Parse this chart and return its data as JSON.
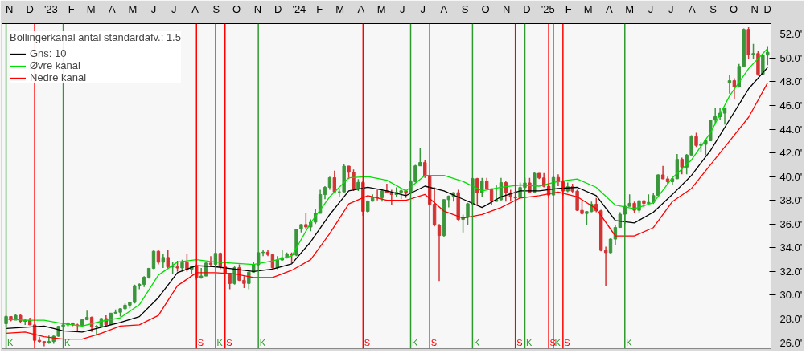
{
  "chart_data": {
    "type": "candlestick",
    "legend_title": "Bollingerkanal antal standardafv.: 1.5",
    "x": [
      "2022-11-11",
      "2022-11-18",
      "2022-11-25",
      "2022-12-02",
      "2022-12-09",
      "2022-12-16",
      "2022-12-23",
      "2022-12-30",
      "2023-01-06",
      "2023-01-13",
      "2023-01-20",
      "2023-01-27",
      "2023-02-03",
      "2023-02-10",
      "2023-02-17",
      "2023-02-24",
      "2023-03-03",
      "2023-03-10",
      "2023-03-17",
      "2023-03-24",
      "2023-03-31",
      "2023-04-07",
      "2023-04-14",
      "2023-04-21",
      "2023-04-28",
      "2023-05-05",
      "2023-05-12",
      "2023-05-19",
      "2023-05-26",
      "2023-06-02",
      "2023-06-09",
      "2023-06-16",
      "2023-06-23",
      "2023-06-30",
      "2023-07-07",
      "2023-07-14",
      "2023-07-21",
      "2023-07-28",
      "2023-08-04",
      "2023-08-11",
      "2023-08-18",
      "2023-08-25",
      "2023-09-01",
      "2023-09-08",
      "2023-09-15",
      "2023-09-22",
      "2023-09-29",
      "2023-10-06",
      "2023-10-13",
      "2023-10-20",
      "2023-10-27",
      "2023-11-03",
      "2023-11-10",
      "2023-11-17",
      "2023-11-24",
      "2023-12-01",
      "2023-12-08",
      "2023-12-15",
      "2023-12-22",
      "2023-12-29",
      "2024-01-05",
      "2024-01-12",
      "2024-01-19",
      "2024-01-26",
      "2024-02-02",
      "2024-02-09",
      "2024-02-16",
      "2024-02-23",
      "2024-03-01",
      "2024-03-08",
      "2024-03-15",
      "2024-03-22",
      "2024-03-29",
      "2024-04-05",
      "2024-04-12",
      "2024-04-19",
      "2024-04-26",
      "2024-05-03",
      "2024-05-10",
      "2024-05-17",
      "2024-05-24",
      "2024-05-31",
      "2024-06-07",
      "2024-06-14",
      "2024-06-21",
      "2024-06-28",
      "2024-07-05",
      "2024-07-12",
      "2024-07-19",
      "2024-07-26",
      "2024-08-02",
      "2024-08-09",
      "2024-08-16",
      "2024-08-23",
      "2024-08-30",
      "2024-09-06",
      "2024-09-13",
      "2024-09-20",
      "2024-09-27",
      "2024-10-04",
      "2024-10-11",
      "2024-10-18",
      "2024-10-25",
      "2024-11-01",
      "2024-11-08",
      "2024-11-15",
      "2024-11-22",
      "2024-11-29",
      "2024-12-06",
      "2024-12-13",
      "2024-12-20",
      "2024-12-27",
      "2025-01-03",
      "2025-01-10",
      "2025-01-17",
      "2025-01-24",
      "2025-01-31",
      "2025-02-07",
      "2025-02-14",
      "2025-02-21",
      "2025-02-28",
      "2025-03-07",
      "2025-03-14",
      "2025-03-21",
      "2025-03-28",
      "2025-04-04",
      "2025-04-11",
      "2025-04-18",
      "2025-04-25",
      "2025-05-02",
      "2025-05-09",
      "2025-05-16",
      "2025-05-23",
      "2025-05-30",
      "2025-06-06",
      "2025-06-13",
      "2025-06-20",
      "2025-06-27",
      "2025-07-04",
      "2025-07-11",
      "2025-07-18",
      "2025-07-25",
      "2025-08-01",
      "2025-08-08",
      "2025-08-15",
      "2025-08-22",
      "2025-08-29",
      "2025-09-05",
      "2025-09-12",
      "2025-09-19",
      "2025-09-26",
      "2025-10-03",
      "2025-10-10",
      "2025-10-17",
      "2025-10-24",
      "2025-10-31",
      "2025-11-07",
      "2025-11-14",
      "2025-11-21",
      "2025-11-28",
      "2025-12-05"
    ],
    "ohlc": [
      [
        27.6,
        28.3,
        27.3,
        28.2
      ],
      [
        28.2,
        28.2,
        27.8,
        27.9
      ],
      [
        27.9,
        28.4,
        27.9,
        28.3
      ],
      [
        28.3,
        28.4,
        27.7,
        27.8
      ],
      [
        27.8,
        28.0,
        27.5,
        27.9
      ],
      [
        27.9,
        28.1,
        27.5,
        27.5
      ],
      [
        27.5,
        27.5,
        26.0,
        26.2
      ],
      [
        26.2,
        26.5,
        26.0,
        26.1
      ],
      [
        26.1,
        26.1,
        25.7,
        25.97
      ],
      [
        26.0,
        26.6,
        25.9,
        26.1
      ],
      [
        26.1,
        26.6,
        25.9,
        26.55
      ],
      [
        26.55,
        27.4,
        26.5,
        27.38
      ],
      [
        27.38,
        27.6,
        27.1,
        27.5
      ],
      [
        27.5,
        27.7,
        27.3,
        27.67
      ],
      [
        27.67,
        27.7,
        27.4,
        27.5
      ],
      [
        27.5,
        27.6,
        27.0,
        27.45
      ],
      [
        27.45,
        28.0,
        27.3,
        27.93
      ],
      [
        27.93,
        28.7,
        27.9,
        28.14
      ],
      [
        28.14,
        28.2,
        26.9,
        27.33
      ],
      [
        27.33,
        27.5,
        26.6,
        27.39
      ],
      [
        27.39,
        28.1,
        27.3,
        28.04
      ],
      [
        28.04,
        28.3,
        27.3,
        27.52
      ],
      [
        27.52,
        28.5,
        27.5,
        28.49
      ],
      [
        28.49,
        28.8,
        28.4,
        28.56
      ],
      [
        28.56,
        28.9,
        28.2,
        28.86
      ],
      [
        28.86,
        29.3,
        28.8,
        29.16
      ],
      [
        29.16,
        29.4,
        28.9,
        29.39
      ],
      [
        29.39,
        30.9,
        29.3,
        30.81
      ],
      [
        30.81,
        31.0,
        30.5,
        30.92
      ],
      [
        30.92,
        31.6,
        30.7,
        31.52
      ],
      [
        31.52,
        32.3,
        31.4,
        32.27
      ],
      [
        32.27,
        33.8,
        32.2,
        33.71
      ],
      [
        33.71,
        33.8,
        32.6,
        32.78
      ],
      [
        32.78,
        33.5,
        32.3,
        33.19
      ],
      [
        33.19,
        33.8,
        32.3,
        32.39
      ],
      [
        32.39,
        32.8,
        31.8,
        32.39
      ],
      [
        32.39,
        32.9,
        32.0,
        32.3
      ],
      [
        32.3,
        33.0,
        32.0,
        32.76
      ],
      [
        32.76,
        33.5,
        32.0,
        32.19
      ],
      [
        32.19,
        32.5,
        31.8,
        32.47
      ],
      [
        32.47,
        32.6,
        31.3,
        31.45
      ],
      [
        31.45,
        32.3,
        31.4,
        31.62
      ],
      [
        31.62,
        32.8,
        31.6,
        32.71
      ],
      [
        32.71,
        33.3,
        32.4,
        32.61
      ],
      [
        32.61,
        33.6,
        32.3,
        33.53
      ],
      [
        33.53,
        33.6,
        32.2,
        32.4
      ],
      [
        32.4,
        32.8,
        31.8,
        31.86
      ],
      [
        31.86,
        31.9,
        30.5,
        30.99
      ],
      [
        30.99,
        32.5,
        30.9,
        32.32
      ],
      [
        32.32,
        32.6,
        31.2,
        31.26
      ],
      [
        31.26,
        31.6,
        30.6,
        30.99
      ],
      [
        30.99,
        32.0,
        30.5,
        31.95
      ],
      [
        31.95,
        32.8,
        31.9,
        32.57
      ],
      [
        32.57,
        33.6,
        32.5,
        33.59
      ],
      [
        33.59,
        33.8,
        33.3,
        33.63
      ],
      [
        33.63,
        33.8,
        33.3,
        33.43
      ],
      [
        33.43,
        33.5,
        32.2,
        32.31
      ],
      [
        32.31,
        33.3,
        32.2,
        32.97
      ],
      [
        32.97,
        33.8,
        32.9,
        33.17
      ],
      [
        33.17,
        33.6,
        33.1,
        33.46
      ],
      [
        33.46,
        33.6,
        32.7,
        33.38
      ],
      [
        33.38,
        35.6,
        33.3,
        35.58
      ],
      [
        35.58,
        36.0,
        35.3,
        35.96
      ],
      [
        35.96,
        36.9,
        35.6,
        35.75
      ],
      [
        35.75,
        36.4,
        35.4,
        36.16
      ],
      [
        36.16,
        37.3,
        36.0,
        36.9
      ],
      [
        36.9,
        38.9,
        36.9,
        38.49
      ],
      [
        38.49,
        39.2,
        38.1,
        39.1
      ],
      [
        39.1,
        40.0,
        38.9,
        39.91
      ],
      [
        39.91,
        40.5,
        38.7,
        38.71
      ],
      [
        38.71,
        39.0,
        38.3,
        38.71
      ],
      [
        38.71,
        41.1,
        38.7,
        40.89
      ],
      [
        40.89,
        40.9,
        39.8,
        40.37
      ],
      [
        40.37,
        40.6,
        38.8,
        38.99
      ],
      [
        38.99,
        39.8,
        38.8,
        39.52
      ],
      [
        39.52,
        39.6,
        36.7,
        37.07
      ],
      [
        37.07,
        38.0,
        36.9,
        37.93
      ],
      [
        37.93,
        38.5,
        37.9,
        38.24
      ],
      [
        38.24,
        38.9,
        38.0,
        38.23
      ],
      [
        38.23,
        39.0,
        37.9,
        38.79
      ],
      [
        38.79,
        39.4,
        38.6,
        38.65
      ],
      [
        38.65,
        38.9,
        37.6,
        38.49
      ],
      [
        38.49,
        39.1,
        38.3,
        38.68
      ],
      [
        38.68,
        39.0,
        38.1,
        38.81
      ],
      [
        38.81,
        38.9,
        38.2,
        38.6
      ],
      [
        38.6,
        39.7,
        38.6,
        39.58
      ],
      [
        39.58,
        41.0,
        39.5,
        40.91
      ],
      [
        40.91,
        42.4,
        40.9,
        41.19
      ],
      [
        41.19,
        41.4,
        39.9,
        40.06
      ],
      [
        40.06,
        40.1,
        37.6,
        37.67
      ],
      [
        37.67,
        39.1,
        35.8,
        35.91
      ],
      [
        35.91,
        36.0,
        31.2,
        35.03
      ],
      [
        35.03,
        38.1,
        34.9,
        38.06
      ],
      [
        38.06,
        38.4,
        37.4,
        38.36
      ],
      [
        38.36,
        38.7,
        37.9,
        38.65
      ],
      [
        38.65,
        38.9,
        36.3,
        36.39
      ],
      [
        36.39,
        36.8,
        35.3,
        36.58
      ],
      [
        36.58,
        37.8,
        35.9,
        37.72
      ],
      [
        37.72,
        39.9,
        37.6,
        39.83
      ],
      [
        39.83,
        39.9,
        37.6,
        38.64
      ],
      [
        38.64,
        39.9,
        38.3,
        39.61
      ],
      [
        39.61,
        39.9,
        38.9,
        38.98
      ],
      [
        38.98,
        39.0,
        37.6,
        37.91
      ],
      [
        37.91,
        39.3,
        37.9,
        38.05
      ],
      [
        38.05,
        39.9,
        38.0,
        39.5
      ],
      [
        39.5,
        39.6,
        37.9,
        38.64
      ],
      [
        38.64,
        38.9,
        37.9,
        38.28
      ],
      [
        38.28,
        38.7,
        37.8,
        38.21
      ],
      [
        38.21,
        39.5,
        38.2,
        39.09
      ],
      [
        39.09,
        39.9,
        39.0,
        39.47
      ],
      [
        39.47,
        39.9,
        38.6,
        38.7
      ],
      [
        38.7,
        40.4,
        38.7,
        40.28
      ],
      [
        40.28,
        40.3,
        39.8,
        39.89
      ],
      [
        39.89,
        40.3,
        39.1,
        39.19
      ],
      [
        39.19,
        39.3,
        38.2,
        38.45
      ],
      [
        38.45,
        40.1,
        38.4,
        39.93
      ],
      [
        39.93,
        40.2,
        39.2,
        39.57
      ],
      [
        39.57,
        39.6,
        38.4,
        38.79
      ],
      [
        38.79,
        39.5,
        38.7,
        39.15
      ],
      [
        39.15,
        39.4,
        38.6,
        38.78
      ],
      [
        38.78,
        38.9,
        37.1,
        37.16
      ],
      [
        37.16,
        38.0,
        36.8,
        36.89
      ],
      [
        36.89,
        37.1,
        35.9,
        37.05
      ],
      [
        37.05,
        37.9,
        37.0,
        37.68
      ],
      [
        37.68,
        38.2,
        37.0,
        37.12
      ],
      [
        37.12,
        37.2,
        33.7,
        33.78
      ],
      [
        33.78,
        34.1,
        30.8,
        33.59
      ],
      [
        33.59,
        34.8,
        33.5,
        34.73
      ],
      [
        34.73,
        35.9,
        34.2,
        35.71
      ],
      [
        35.71,
        37.0,
        35.7,
        36.83
      ],
      [
        36.83,
        37.6,
        36.0,
        37.5
      ],
      [
        37.5,
        38.5,
        37.5,
        37.75
      ],
      [
        37.75,
        37.9,
        36.9,
        37.16
      ],
      [
        37.16,
        38.0,
        36.9,
        37.97
      ],
      [
        37.97,
        38.0,
        37.4,
        37.74
      ],
      [
        37.74,
        38.5,
        37.7,
        37.83
      ],
      [
        37.83,
        38.6,
        37.7,
        38.4
      ],
      [
        38.4,
        40.2,
        38.4,
        40.15
      ],
      [
        40.15,
        40.9,
        39.8,
        39.81
      ],
      [
        39.81,
        40.0,
        39.4,
        39.57
      ],
      [
        39.57,
        40.0,
        39.3,
        39.82
      ],
      [
        39.82,
        41.9,
        39.8,
        41.46
      ],
      [
        41.46,
        41.6,
        40.2,
        40.8
      ],
      [
        40.8,
        41.9,
        40.2,
        41.82
      ],
      [
        41.82,
        43.5,
        41.8,
        43.38
      ],
      [
        43.38,
        43.7,
        42.5,
        42.63
      ],
      [
        42.63,
        42.9,
        42.1,
        42.72
      ],
      [
        42.72,
        43.1,
        41.8,
        43.02
      ],
      [
        43.02,
        44.8,
        43.0,
        44.77
      ],
      [
        44.77,
        45.8,
        44.4,
        45.05
      ],
      [
        45.05,
        45.8,
        44.8,
        45.35
      ],
      [
        45.35,
        45.8,
        44.4,
        45.77
      ],
      [
        47.9,
        48.6,
        47.0,
        48.09
      ],
      [
        48.09,
        48.3,
        46.5,
        47.58
      ],
      [
        47.58,
        49.5,
        47.5,
        49.3
      ],
      [
        49.3,
        52.5,
        49.3,
        52.41
      ],
      [
        52.41,
        52.6,
        49.9,
        50.28
      ],
      [
        50.28,
        51.2,
        49.9,
        50.38
      ],
      [
        50.38,
        50.6,
        48.5,
        48.63
      ],
      [
        48.63,
        50.3,
        48.6,
        50.25
      ],
      [
        50.25,
        51.0,
        49.4,
        50.49
      ]
    ],
    "colors": [
      "#3a963a",
      "#d23434",
      "#3a963a",
      "#d23434",
      "#3a963a",
      "#d23434",
      "#d23434",
      "#d23434",
      "#d23434",
      "#3a963a",
      "#3a963a",
      "#3a963a",
      "#3a963a",
      "#3a963a",
      "#d23434",
      "#d23434",
      "#3a963a",
      "#3a963a",
      "#d23434",
      "#3a963a",
      "#3a963a",
      "#d23434",
      "#3a963a",
      "#3a963a",
      "#3a963a",
      "#3a963a",
      "#3a963a",
      "#3a963a",
      "#3a963a",
      "#3a963a",
      "#3a963a",
      "#3a963a",
      "#d23434",
      "#3a963a",
      "#d23434",
      "#3a963a",
      "#d23434",
      "#3a963a",
      "#d23434",
      "#3a963a",
      "#d23434",
      "#3a963a",
      "#3a963a",
      "#d23434",
      "#3a963a",
      "#d23434",
      "#d23434",
      "#d23434",
      "#3a963a",
      "#d23434",
      "#d23434",
      "#3a963a",
      "#3a963a",
      "#3a963a",
      "#3a963a",
      "#d23434",
      "#d23434",
      "#3a963a",
      "#3a963a",
      "#3a963a",
      "#d23434",
      "#3a963a",
      "#3a963a",
      "#d23434",
      "#3a963a",
      "#3a963a",
      "#3a963a",
      "#3a963a",
      "#3a963a",
      "#d23434",
      "#3a963a",
      "#3a963a",
      "#d23434",
      "#d23434",
      "#3a963a",
      "#d23434",
      "#3a963a",
      "#3a963a",
      "#d23434",
      "#3a963a",
      "#d23434",
      "#d23434",
      "#3a963a",
      "#3a963a",
      "#d23434",
      "#3a963a",
      "#3a963a",
      "#3a963a",
      "#d23434",
      "#d23434",
      "#d23434",
      "#d23434",
      "#3a963a",
      "#3a963a",
      "#3a963a",
      "#d23434",
      "#3a963a",
      "#3a963a",
      "#3a963a",
      "#d23434",
      "#3a963a",
      "#d23434",
      "#d23434",
      "#3a963a",
      "#3a963a",
      "#d23434",
      "#d23434",
      "#d23434",
      "#3a963a",
      "#3a963a",
      "#d23434",
      "#3a963a",
      "#d23434",
      "#d23434",
      "#d23434",
      "#3a963a",
      "#d23434",
      "#d23434",
      "#3a963a",
      "#d23434",
      "#d23434",
      "#d23434",
      "#3a963a",
      "#3a963a",
      "#d23434",
      "#d23434",
      "#d23434",
      "#3a963a",
      "#3a963a",
      "#3a963a",
      "#3a963a",
      "#3a963a",
      "#d23434",
      "#3a963a",
      "#d23434",
      "#3a963a",
      "#3a963a",
      "#3a963a",
      "#d23434",
      "#d23434",
      "#3a963a",
      "#3a963a",
      "#d23434",
      "#3a963a",
      "#3a963a",
      "#d23434",
      "#3a963a",
      "#3a963a",
      "#3a963a",
      "#3a963a",
      "#3a963a",
      "#3a963a",
      "#3a963a",
      "#d23434",
      "#3a963a",
      "#3a963a",
      "#d23434",
      "#3a963a",
      "#d23434",
      "#3a963a",
      "#3a963a"
    ],
    "series": [
      {
        "type": "line",
        "name": "Gns: 10",
        "color": "#000000",
        "x": [
          "2022-11-11",
          "2022-12-09",
          "2023-01-06",
          "2023-02-03",
          "2023-03-03",
          "2023-03-31",
          "2023-04-28",
          "2023-05-26",
          "2023-06-23",
          "2023-07-21",
          "2023-08-18",
          "2023-09-15",
          "2023-10-13",
          "2023-11-10",
          "2023-12-08",
          "2024-01-05",
          "2024-02-02",
          "2024-03-01",
          "2024-03-29",
          "2024-04-26",
          "2024-05-24",
          "2024-06-21",
          "2024-07-19",
          "2024-08-16",
          "2024-09-13",
          "2024-10-11",
          "2024-11-08",
          "2024-12-06",
          "2025-01-03",
          "2025-01-31",
          "2025-02-28",
          "2025-03-28",
          "2025-04-25",
          "2025-05-23",
          "2025-06-20",
          "2025-07-18",
          "2025-08-15",
          "2025-09-12",
          "2025-10-10",
          "2025-11-07",
          "2025-12-05"
        ],
        "values": [
          27.2,
          27.3,
          27.4,
          27.0,
          26.9,
          27.3,
          27.7,
          28.2,
          29.8,
          31.9,
          32.5,
          32.4,
          32.2,
          32.0,
          32.2,
          32.65,
          34.5,
          36.8,
          38.8,
          39.1,
          38.8,
          38.4,
          39.2,
          38.8,
          38.1,
          37.4,
          38.3,
          38.8,
          38.8,
          39.0,
          39.1,
          38.4,
          36.3,
          36.1,
          37.0,
          38.5,
          40.1,
          42.2,
          44.8,
          47.4,
          49.2
        ]
      },
      {
        "type": "line",
        "name": "Øvre kanal",
        "color": "#00e000",
        "x": [
          "2022-11-11",
          "2022-12-09",
          "2023-01-06",
          "2023-02-03",
          "2023-03-03",
          "2023-03-31",
          "2023-04-28",
          "2023-05-26",
          "2023-06-23",
          "2023-07-21",
          "2023-08-18",
          "2023-09-15",
          "2023-10-13",
          "2023-11-10",
          "2023-12-08",
          "2024-01-05",
          "2024-02-02",
          "2024-03-01",
          "2024-03-29",
          "2024-04-26",
          "2024-05-24",
          "2024-06-21",
          "2024-07-19",
          "2024-08-16",
          "2024-09-13",
          "2024-10-11",
          "2024-11-08",
          "2024-12-06",
          "2025-01-03",
          "2025-01-31",
          "2025-02-28",
          "2025-03-28",
          "2025-04-25",
          "2025-05-23",
          "2025-06-20",
          "2025-07-18",
          "2025-08-15",
          "2025-09-12",
          "2025-10-10",
          "2025-11-07",
          "2025-12-05"
        ],
        "values": [
          28.0,
          27.9,
          27.9,
          27.6,
          27.4,
          27.8,
          28.1,
          29.2,
          31.7,
          32.8,
          33.0,
          32.8,
          32.7,
          32.6,
          32.9,
          33.3,
          36.1,
          38.3,
          39.9,
          40.0,
          39.7,
          38.8,
          40.1,
          40.1,
          39.6,
          38.8,
          39.1,
          39.3,
          39.2,
          39.6,
          39.8,
          39.1,
          37.6,
          37.3,
          37.8,
          39.9,
          41.4,
          43.7,
          46.8,
          49.1,
          50.8
        ]
      },
      {
        "type": "line",
        "name": "Nedre kanal",
        "color": "#ff0000",
        "x": [
          "2022-11-11",
          "2022-12-09",
          "2023-01-06",
          "2023-02-03",
          "2023-03-03",
          "2023-03-31",
          "2023-04-28",
          "2023-05-26",
          "2023-06-23",
          "2023-07-21",
          "2023-08-18",
          "2023-09-15",
          "2023-10-13",
          "2023-11-10",
          "2023-12-08",
          "2024-01-05",
          "2024-02-02",
          "2024-03-01",
          "2024-03-29",
          "2024-04-26",
          "2024-05-24",
          "2024-06-21",
          "2024-07-19",
          "2024-08-16",
          "2024-09-13",
          "2024-10-11",
          "2024-11-08",
          "2024-12-06",
          "2025-01-03",
          "2025-01-31",
          "2025-02-28",
          "2025-03-28",
          "2025-04-25",
          "2025-05-23",
          "2025-06-20",
          "2025-07-18",
          "2025-08-15",
          "2025-09-12",
          "2025-10-10",
          "2025-11-07",
          "2025-12-05"
        ],
        "values": [
          26.8,
          26.9,
          26.5,
          26.3,
          26.3,
          26.8,
          27.4,
          27.5,
          28.3,
          30.8,
          31.9,
          31.9,
          31.8,
          31.5,
          31.5,
          32.1,
          33.0,
          35.2,
          37.7,
          38.4,
          38.0,
          38.0,
          38.5,
          37.1,
          36.5,
          36.8,
          37.4,
          38.2,
          38.4,
          38.7,
          38.3,
          37.3,
          35.0,
          35.0,
          35.7,
          37.9,
          39.0,
          41.0,
          43.0,
          45.0,
          47.9
        ]
      }
    ],
    "ref_lines": [
      {
        "axis": "x",
        "value": "2022-11-11",
        "label": "K",
        "color": "#2e9a2e"
      },
      {
        "axis": "x",
        "value": "2022-12-23",
        "label": null,
        "color": "#ff0000"
      },
      {
        "axis": "x",
        "value": "2023-02-03",
        "label": "K",
        "color": "#2e9a2e"
      },
      {
        "axis": "x",
        "value": "2023-08-18",
        "label": "S",
        "color": "#ff0000"
      },
      {
        "axis": "x",
        "value": "2023-09-15",
        "label": "K",
        "color": "#2e9a2e"
      },
      {
        "axis": "x",
        "value": "2023-09-29",
        "label": "S",
        "color": "#ff0000"
      },
      {
        "axis": "x",
        "value": "2023-11-17",
        "label": "K",
        "color": "#2e9a2e"
      },
      {
        "axis": "x",
        "value": "2024-04-19",
        "label": "S",
        "color": "#ff0000"
      },
      {
        "axis": "x",
        "value": "2024-06-28",
        "label": "K",
        "color": "#2e9a2e"
      },
      {
        "axis": "x",
        "value": "2024-07-26",
        "label": "S",
        "color": "#ff0000"
      },
      {
        "axis": "x",
        "value": "2024-09-27",
        "label": "K",
        "color": "#2e9a2e"
      },
      {
        "axis": "x",
        "value": "2024-11-29",
        "label": "S",
        "color": "#ff0000"
      },
      {
        "axis": "x",
        "value": "2024-12-13",
        "label": "K",
        "color": "#2e9a2e"
      },
      {
        "axis": "x",
        "value": "2025-01-17",
        "label": "S",
        "color": "#ff0000"
      },
      {
        "axis": "x",
        "value": "2025-01-24",
        "label": "K",
        "color": "#2e9a2e"
      },
      {
        "axis": "x",
        "value": "2025-02-07",
        "label": "S",
        "color": "#ff0000"
      },
      {
        "axis": "x",
        "value": "2025-05-09",
        "label": "K",
        "color": "#2e9a2e"
      }
    ],
    "xlim": [
      "2022-11-05",
      "2025-12-10"
    ],
    "xticks": [
      {
        "value": "2022-11-16",
        "label": "N"
      },
      {
        "value": "2022-12-16",
        "label": "D"
      },
      {
        "value": "2023-01-16",
        "label": "'23"
      },
      {
        "value": "2023-02-15",
        "label": "F"
      },
      {
        "value": "2023-03-16",
        "label": "M"
      },
      {
        "value": "2023-04-16",
        "label": "A"
      },
      {
        "value": "2023-05-16",
        "label": "M"
      },
      {
        "value": "2023-06-16",
        "label": "J"
      },
      {
        "value": "2023-07-16",
        "label": "J"
      },
      {
        "value": "2023-08-16",
        "label": "A"
      },
      {
        "value": "2023-09-16",
        "label": "S"
      },
      {
        "value": "2023-10-16",
        "label": "O"
      },
      {
        "value": "2023-11-16",
        "label": "N"
      },
      {
        "value": "2023-12-16",
        "label": "D"
      },
      {
        "value": "2024-01-16",
        "label": "'24"
      },
      {
        "value": "2024-02-15",
        "label": "F"
      },
      {
        "value": "2024-03-16",
        "label": "M"
      },
      {
        "value": "2024-04-16",
        "label": "A"
      },
      {
        "value": "2024-05-16",
        "label": "M"
      },
      {
        "value": "2024-06-16",
        "label": "J"
      },
      {
        "value": "2024-07-16",
        "label": "J"
      },
      {
        "value": "2024-08-16",
        "label": "A"
      },
      {
        "value": "2024-09-16",
        "label": "S"
      },
      {
        "value": "2024-10-16",
        "label": "O"
      },
      {
        "value": "2024-11-16",
        "label": "N"
      },
      {
        "value": "2024-12-16",
        "label": "D"
      },
      {
        "value": "2025-01-16",
        "label": "'25"
      },
      {
        "value": "2025-02-15",
        "label": "F"
      },
      {
        "value": "2025-03-16",
        "label": "M"
      },
      {
        "value": "2025-04-16",
        "label": "A"
      },
      {
        "value": "2025-05-16",
        "label": "M"
      },
      {
        "value": "2025-06-16",
        "label": "J"
      },
      {
        "value": "2025-07-16",
        "label": "J"
      },
      {
        "value": "2025-08-16",
        "label": "A"
      },
      {
        "value": "2025-09-16",
        "label": "S"
      },
      {
        "value": "2025-10-16",
        "label": "O"
      },
      {
        "value": "2025-11-16",
        "label": "N"
      },
      {
        "value": "2025-12-05",
        "label": "D"
      }
    ],
    "ylim": [
      25.5,
      52.9
    ],
    "yticks": [
      {
        "value": 26,
        "label": "26.0'"
      },
      {
        "value": 28,
        "label": "28.0'"
      },
      {
        "value": 30,
        "label": "30.0'"
      },
      {
        "value": 32,
        "label": "32.0'"
      },
      {
        "value": 34,
        "label": "34.0'"
      },
      {
        "value": 36,
        "label": "36.0'"
      },
      {
        "value": 38,
        "label": "38.0'"
      },
      {
        "value": 40,
        "label": "40.0'"
      },
      {
        "value": 42,
        "label": "42.0'"
      },
      {
        "value": 44,
        "label": "44.0'"
      },
      {
        "value": 46,
        "label": "46.0'"
      },
      {
        "value": 48,
        "label": "48.0'"
      },
      {
        "value": 50,
        "label": "50.0'"
      },
      {
        "value": 52,
        "label": "52.0'"
      }
    ],
    "legend": "top left"
  }
}
